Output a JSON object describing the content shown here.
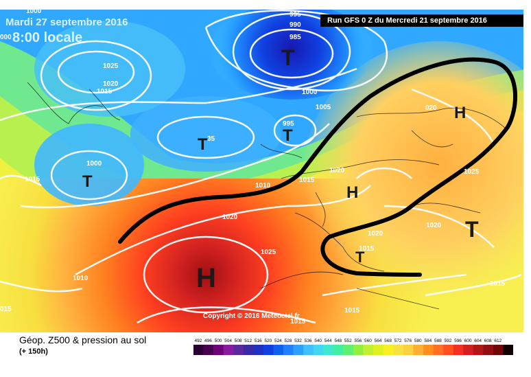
{
  "header": {
    "date": "Mardi 27 septembre 2016",
    "time": "8:00 locale",
    "run": "Run GFS 0 Z du Mercredi 21 septembre 2016"
  },
  "copyright": "Copyright © 2016 Meteociel.fr",
  "legend": {
    "title": "Géop. Z500 & pression au sol",
    "subtitle": "(+ 150h)",
    "scale_values": [
      "492",
      "496",
      "500",
      "504",
      "508",
      "512",
      "516",
      "520",
      "524",
      "528",
      "532",
      "536",
      "540",
      "544",
      "548",
      "552",
      "556",
      "560",
      "564",
      "568",
      "572",
      "576",
      "580",
      "584",
      "588",
      "592",
      "596",
      "600",
      "604",
      "608",
      "612"
    ],
    "scale_colors": [
      "#2a0030",
      "#4a0050",
      "#700078",
      "#8a1aa0",
      "#5a2a9a",
      "#3a2aa0",
      "#2030c0",
      "#1040e0",
      "#1060f0",
      "#2080ff",
      "#30a0ff",
      "#40c0ff",
      "#40d8f0",
      "#40e8d0",
      "#40f0a0",
      "#60f070",
      "#90f040",
      "#c0f030",
      "#e0f020",
      "#f8f020",
      "#f8e040",
      "#ffd040",
      "#ffb030",
      "#ff9020",
      "#ff7020",
      "#ff5020",
      "#f03020",
      "#d02020",
      "#b01818",
      "#901010",
      "#700808",
      "#100000"
    ]
  },
  "pressure_systems": [
    {
      "letter": "T"
    },
    {
      "letter": "T"
    },
    {
      "letter": "T"
    },
    {
      "letter": "T"
    },
    {
      "letter": "T"
    },
    {
      "letter": "T"
    },
    {
      "letter": "H"
    },
    {
      "letter": "H"
    },
    {
      "letter": "H"
    }
  ],
  "isobar_labels": [
    "1000",
    "995",
    "990",
    "985",
    "1025",
    "1020",
    "1015",
    "1000",
    "1005",
    "995",
    "1000",
    "1010",
    "1015",
    "1020",
    "1025",
    "1020",
    "1020",
    "1020",
    "1015",
    "1025",
    "1010",
    "1015",
    "1015",
    "1015",
    "1015",
    "35",
    "000",
    "020",
    "015"
  ]
}
